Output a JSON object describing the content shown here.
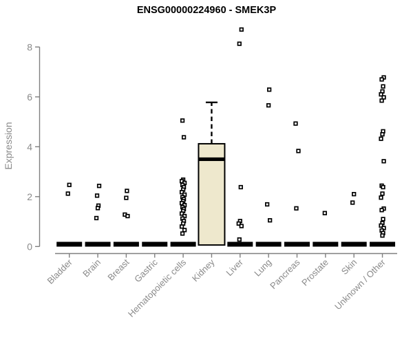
{
  "chart_data": {
    "type": "boxplot",
    "title": "ENSG00000224960 - SMEK3P",
    "xlabel": "",
    "ylabel": "Expression",
    "yticks": [
      0,
      2,
      4,
      6,
      8
    ],
    "ylim": [
      0,
      8.8
    ],
    "grid": false,
    "legend": "none",
    "categories": [
      "Bladder",
      "Brain",
      "Breast",
      "Gastric",
      "Hematopoietic cells",
      "Kidney",
      "Liver",
      "Lung",
      "Pancreas",
      "Prostate",
      "Skin",
      "Unknown / Other"
    ],
    "points": [
      [
        2.47,
        2.12
      ],
      [
        2.43,
        2.04,
        1.64,
        1.54,
        1.14
      ],
      [
        2.23,
        1.95,
        1.28,
        1.22
      ],
      [],
      [
        5.05,
        4.38,
        2.68,
        2.62,
        2.55,
        2.47,
        2.38,
        2.28,
        2.18,
        2.08,
        1.98,
        1.9,
        1.82,
        1.74,
        1.66,
        1.58,
        1.5,
        1.42,
        1.32,
        1.22,
        1.12,
        1.02,
        0.92,
        0.8,
        0.66,
        0.52
      ],
      [],
      [
        8.7,
        8.13,
        2.38,
        1.02,
        0.92,
        0.82,
        0.28
      ],
      [
        6.29,
        5.66,
        1.69,
        1.05
      ],
      [
        4.93,
        3.83,
        1.53
      ],
      [
        1.34
      ],
      [
        2.1,
        1.76
      ],
      [
        6.78,
        6.7,
        6.42,
        6.22,
        6.1,
        5.98,
        5.85,
        4.62,
        4.5,
        4.32,
        3.42,
        2.44,
        2.38,
        2.12,
        1.96,
        1.52,
        1.46,
        1.1,
        0.94,
        0.84,
        0.74,
        0.64,
        0.54,
        0.44
      ]
    ],
    "boxes": [
      {
        "category": "Kidney",
        "q1": 0.06,
        "median": 3.5,
        "q3": 4.12,
        "whisker_high": 5.78,
        "whisker_low": 0.06
      }
    ],
    "zero_bars": [
      "Bladder",
      "Brain",
      "Breast",
      "Gastric",
      "Hematopoietic cells",
      "Liver",
      "Lung",
      "Pancreas",
      "Prostate",
      "Skin",
      "Unknown / Other"
    ],
    "colors": {
      "box_fill": "#EEE8CD",
      "box_stroke": "#000000",
      "point_stroke": "#000000",
      "point_fill": "#ffffff",
      "zero_bar": "#000000",
      "axis": "#7f7f7f",
      "tick_label": "#8a8a8a",
      "title": "#000000"
    }
  }
}
